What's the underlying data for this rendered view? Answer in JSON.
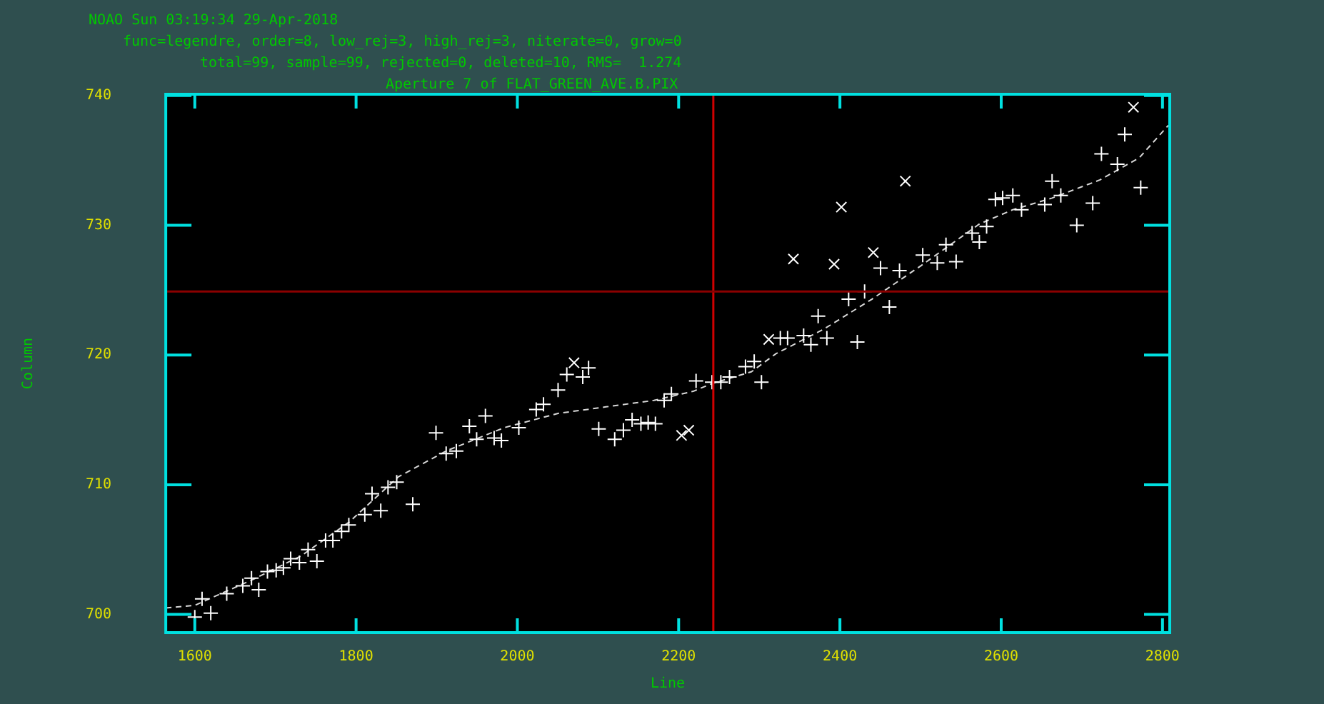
{
  "chart_data": {
    "type": "scatter",
    "title": "NOAO Sun 03:19:34 29-Apr-2018",
    "subtitle": "Aperture 7 of FLAT_GREEN_AVE.B.PIX",
    "annotations": [
      "func=legendre, order=8, low_rej=3, high_rej=3, niterate=0, grow=0",
      "total=99, sample=99, rejected=0, deleted=10, RMS=  1.274"
    ],
    "xlabel": "Line",
    "ylabel": "Column",
    "xlim": [
      1564,
      2809
    ],
    "ylim": [
      698.6,
      740.1
    ],
    "xticks": [
      1600,
      1800,
      2000,
      2200,
      2400,
      2600,
      2800
    ],
    "yticks": [
      700,
      710,
      720,
      730,
      740
    ],
    "series": [
      {
        "marker": "cross",
        "color": "#ffffff",
        "x": [
          1600.0,
          1609.0,
          1619.8,
          1639.6,
          1659.5,
          1670.3,
          1679.3,
          1690.1,
          1700.9,
          1709.9,
          1718.9,
          1729.7,
          1740.5,
          1751.4,
          1762.2,
          1771.2,
          1782.0,
          1791.0,
          1810.8,
          1819.8,
          1830.6,
          1839.6,
          1850.4,
          1870.3,
          1899.1,
          1911.7,
          1924.3,
          1940.5,
          1949.5,
          1960.4,
          1971.2,
          1980.2,
          2001.8,
          2023.4,
          2032.4,
          2050.5,
          2061.3,
          2081.1,
          2088.3,
          2100.9,
          2120.7,
          2131.5,
          2142.3,
          2153.2,
          2162.2,
          2171.2,
          2182.0,
          2191.0,
          2221.6,
          2241.4,
          2252.3,
          2263.1,
          2282.9,
          2293.7,
          2302.7,
          2326.1,
          2335.1,
          2355.0,
          2364.0,
          2373.0,
          2383.8,
          2410.8,
          2421.6,
          2430.6,
          2450.4,
          2461.3,
          2473.9,
          2502.7,
          2520.7,
          2531.5,
          2544.1,
          2563.9,
          2572.9,
          2581.9,
          2592.8,
          2601.8,
          2614.4,
          2625.2,
          2654.0,
          2663.1,
          2673.9,
          2693.7,
          2713.5,
          2724.3,
          2744.1,
          2753.2,
          2773.0
        ],
        "values": [
          699.8,
          701.2,
          700.1,
          701.6,
          702.2,
          702.8,
          701.9,
          703.3,
          703.4,
          703.6,
          704.3,
          704.0,
          705.0,
          704.1,
          705.7,
          705.7,
          706.4,
          706.9,
          707.7,
          709.3,
          708.0,
          709.8,
          710.2,
          708.5,
          714.0,
          712.4,
          712.6,
          714.5,
          713.5,
          715.3,
          713.6,
          713.4,
          714.4,
          715.8,
          716.2,
          717.3,
          718.5,
          718.3,
          719.0,
          714.3,
          713.5,
          714.2,
          715.0,
          714.7,
          714.8,
          714.7,
          716.5,
          717.0,
          718.0,
          717.9,
          717.9,
          718.3,
          719.1,
          719.5,
          717.9,
          721.3,
          721.3,
          721.5,
          720.8,
          723.0,
          721.3,
          724.3,
          721.0,
          724.9,
          726.7,
          723.7,
          726.5,
          727.7,
          727.1,
          728.5,
          727.2,
          729.4,
          728.7,
          729.9,
          732.0,
          732.1,
          732.3,
          731.2,
          731.6,
          733.4,
          732.3,
          730.0,
          731.7,
          735.5,
          734.7,
          737.0,
          732.9
        ]
      },
      {
        "marker": "x",
        "color": "#ffffff",
        "x": [
          2070.3,
          2203.6,
          2212.6,
          2311.7,
          2342.3,
          2392.8,
          2401.8,
          2441.4,
          2481.1,
          2764.0
        ],
        "values": [
          719.4,
          713.8,
          714.2,
          721.2,
          727.4,
          727.0,
          731.4,
          727.9,
          733.4,
          739.1
        ]
      },
      {
        "type": "line",
        "marker": "none",
        "line_style": "dashed",
        "color": "#d8d8d8",
        "x": [
          1564.0,
          1600.0,
          1672.1,
          1731.5,
          1791.0,
          1852.3,
          1911.7,
          1983.8,
          2050.5,
          2109.9,
          2169.4,
          2218.0,
          2241.4,
          2290.1,
          2320.7,
          2380.2,
          2439.6,
          2500.9,
          2573.0,
          2614.4,
          2663.1,
          2722.5,
          2771.2,
          2807.2
        ],
        "values": [
          700.5,
          700.7,
          702.7,
          704.5,
          707.1,
          710.6,
          712.6,
          714.4,
          715.5,
          716.0,
          716.5,
          717.2,
          717.8,
          718.7,
          720.1,
          722.0,
          724.3,
          726.9,
          730.1,
          731.2,
          732.1,
          733.5,
          735.2,
          737.7
        ]
      }
    ],
    "ref_lines": [
      {
        "axis": "x",
        "value": 2243,
        "color": "#d00000"
      },
      {
        "axis": "y",
        "value": 724.9,
        "color": "#8b0000"
      }
    ]
  }
}
